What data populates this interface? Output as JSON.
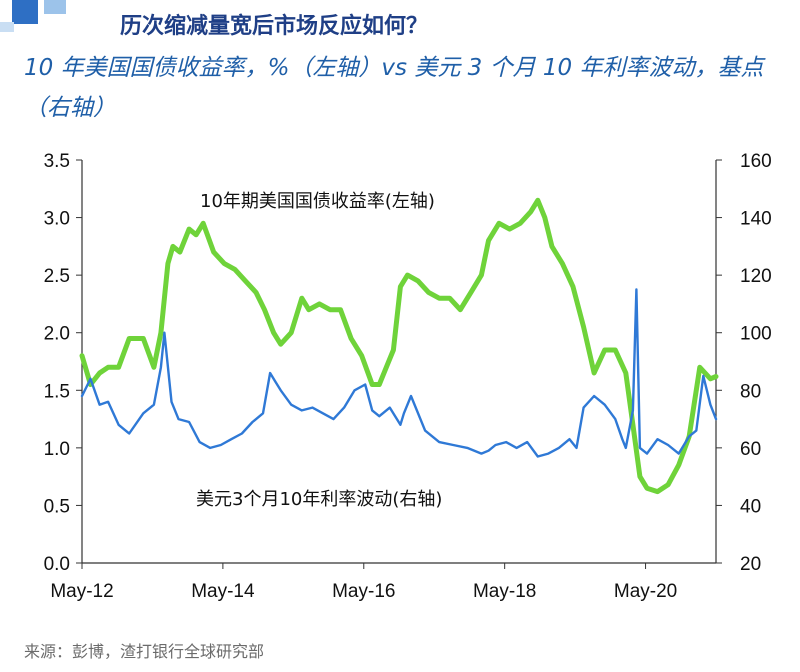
{
  "header": {
    "title": "历次缩减量宽后市场反应如何？",
    "subtitle": "10 年美国国债收益率，%（左轴）vs 美元 3 个月 10 年利率波动，基点（右轴）",
    "accent_color": "#1f3f86"
  },
  "footer": {
    "source": "来源：彭博，渣打银行全球研究部"
  },
  "chart_data": {
    "type": "line",
    "title": "",
    "x_tick_labels": [
      "May-12",
      "May-14",
      "May-16",
      "May-18",
      "May-20"
    ],
    "x_ticks": [
      2012.33,
      2014.33,
      2016.33,
      2018.33,
      2020.33
    ],
    "x_range": [
      2012.33,
      2021.33
    ],
    "y_left": {
      "range": [
        0,
        3.5
      ],
      "ticks": [
        "0.0",
        "0.5",
        "1.0",
        "1.5",
        "2.0",
        "2.5",
        "3.0",
        "3.5"
      ]
    },
    "y_right": {
      "range": [
        20,
        160
      ],
      "ticks": [
        "20",
        "40",
        "60",
        "80",
        "100",
        "120",
        "140",
        "160"
      ]
    },
    "grid": false,
    "annotations": [
      {
        "text": "10年期美国国债收益率(左轴)",
        "series": "yield"
      },
      {
        "text": "美元3个月10年利率波动(右轴)",
        "series": "vol"
      }
    ],
    "series": [
      {
        "id": "yield",
        "axis": "left",
        "color": "#6fd33a",
        "x": [
          2012.33,
          2012.45,
          2012.58,
          2012.7,
          2012.85,
          2013.0,
          2013.2,
          2013.35,
          2013.45,
          2013.55,
          2013.62,
          2013.72,
          2013.85,
          2013.95,
          2014.05,
          2014.2,
          2014.35,
          2014.5,
          2014.65,
          2014.8,
          2014.92,
          2015.05,
          2015.15,
          2015.3,
          2015.45,
          2015.55,
          2015.7,
          2015.85,
          2016.0,
          2016.15,
          2016.3,
          2016.45,
          2016.55,
          2016.65,
          2016.75,
          2016.85,
          2016.95,
          2017.1,
          2017.25,
          2017.4,
          2017.55,
          2017.7,
          2017.85,
          2018.0,
          2018.1,
          2018.25,
          2018.4,
          2018.55,
          2018.7,
          2018.8,
          2018.9,
          2019.0,
          2019.15,
          2019.3,
          2019.45,
          2019.6,
          2019.75,
          2019.9,
          2020.05,
          2020.15,
          2020.25,
          2020.35,
          2020.5,
          2020.65,
          2020.8,
          2020.95,
          2021.1,
          2021.25,
          2021.33
        ],
        "y": [
          1.8,
          1.55,
          1.65,
          1.7,
          1.7,
          1.95,
          1.95,
          1.7,
          2.0,
          2.6,
          2.75,
          2.7,
          2.9,
          2.85,
          2.95,
          2.7,
          2.6,
          2.55,
          2.45,
          2.35,
          2.2,
          2.0,
          1.9,
          2.0,
          2.3,
          2.2,
          2.25,
          2.2,
          2.2,
          1.95,
          1.8,
          1.55,
          1.55,
          1.7,
          1.85,
          2.4,
          2.5,
          2.45,
          2.35,
          2.3,
          2.3,
          2.2,
          2.35,
          2.5,
          2.8,
          2.95,
          2.9,
          2.95,
          3.05,
          3.15,
          3.0,
          2.75,
          2.6,
          2.4,
          2.05,
          1.65,
          1.85,
          1.85,
          1.65,
          1.2,
          0.75,
          0.65,
          0.62,
          0.68,
          0.85,
          1.1,
          1.7,
          1.6,
          1.62
        ]
      },
      {
        "id": "vol",
        "axis": "right",
        "color": "#2f79d6",
        "x": [
          2012.33,
          2012.45,
          2012.58,
          2012.7,
          2012.85,
          2013.0,
          2013.2,
          2013.35,
          2013.45,
          2013.5,
          2013.6,
          2013.7,
          2013.85,
          2014.0,
          2014.15,
          2014.3,
          2014.45,
          2014.6,
          2014.75,
          2014.9,
          2015.0,
          2015.05,
          2015.15,
          2015.3,
          2015.45,
          2015.6,
          2015.75,
          2015.9,
          2016.05,
          2016.2,
          2016.35,
          2016.45,
          2016.55,
          2016.7,
          2016.85,
          2016.9,
          2017.0,
          2017.2,
          2017.4,
          2017.6,
          2017.8,
          2018.0,
          2018.1,
          2018.2,
          2018.35,
          2018.5,
          2018.65,
          2018.8,
          2018.95,
          2019.1,
          2019.25,
          2019.35,
          2019.45,
          2019.6,
          2019.75,
          2019.9,
          2020.0,
          2020.05,
          2020.15,
          2020.2,
          2020.25,
          2020.35,
          2020.5,
          2020.65,
          2020.8,
          2020.95,
          2021.05,
          2021.15,
          2021.25,
          2021.33
        ],
        "y": [
          78,
          84,
          75,
          76,
          68,
          65,
          72,
          75,
          88,
          100,
          76,
          70,
          69,
          62,
          60,
          61,
          63,
          65,
          69,
          72,
          86,
          84,
          80,
          75,
          73,
          74,
          72,
          70,
          74,
          80,
          82,
          73,
          71,
          74,
          68,
          72,
          78,
          66,
          62,
          61,
          60,
          58,
          59,
          61,
          62,
          60,
          62,
          57,
          58,
          60,
          63,
          60,
          74,
          78,
          75,
          70,
          63,
          60,
          73,
          115,
          60,
          58,
          63,
          61,
          58,
          64,
          66,
          85,
          75,
          70
        ]
      }
    ]
  }
}
